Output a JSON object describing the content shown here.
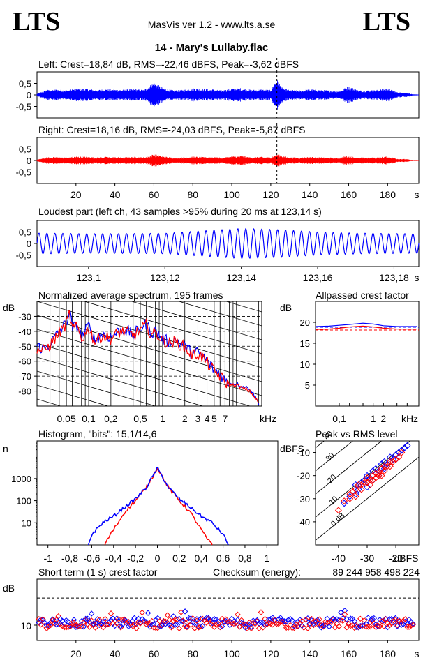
{
  "header": {
    "logo_left": "LTS",
    "logo_right": "LTS",
    "app_title": "MasVis ver 1.2 - www.lts.a.se",
    "track_title": "14 - Mary's Lullaby.flac"
  },
  "colors": {
    "left": "#0000ff",
    "right": "#ff0000",
    "grid": "#000000"
  },
  "chart_data": [
    {
      "id": "left_waveform",
      "type": "line",
      "title": "Left: Crest=18,84 dB, RMS=-22,46 dBFS, Peak=-3,62 dBFS",
      "series": [
        {
          "name": "Left",
          "color": "#0000ff"
        }
      ],
      "crest_db": 18.84,
      "rms_dbfs": -22.46,
      "peak_dbfs": -3.62,
      "ylim": [
        -1,
        1
      ],
      "y_ticks": [
        "0,5",
        "0",
        "-0,5"
      ],
      "marker_x_s": 123.14,
      "envelope_x_s": [
        0,
        5,
        10,
        15,
        20,
        25,
        30,
        35,
        40,
        45,
        50,
        55,
        60,
        65,
        70,
        75,
        80,
        85,
        90,
        95,
        100,
        105,
        110,
        115,
        120,
        123,
        126,
        130,
        135,
        140,
        145,
        150,
        155,
        160,
        165,
        170,
        175,
        180,
        185,
        190,
        193
      ],
      "envelope_amp": [
        0.05,
        0.22,
        0.25,
        0.2,
        0.27,
        0.28,
        0.22,
        0.25,
        0.24,
        0.23,
        0.26,
        0.22,
        0.55,
        0.3,
        0.2,
        0.22,
        0.3,
        0.25,
        0.25,
        0.2,
        0.28,
        0.3,
        0.22,
        0.25,
        0.22,
        0.7,
        0.3,
        0.22,
        0.2,
        0.25,
        0.22,
        0.2,
        0.18,
        0.38,
        0.2,
        0.2,
        0.22,
        0.3,
        0.12,
        0.1,
        0.02
      ]
    },
    {
      "id": "right_waveform",
      "type": "line",
      "title": "Right: Crest=18,16 dB, RMS=-24,03 dBFS, Peak=-5,87 dBFS",
      "series": [
        {
          "name": "Right",
          "color": "#ff0000"
        }
      ],
      "crest_db": 18.16,
      "rms_dbfs": -24.03,
      "peak_dbfs": -5.87,
      "ylim": [
        -1,
        1
      ],
      "y_ticks": [
        "0,5",
        "0",
        "-0,5"
      ],
      "x_ticks": [
        "20",
        "40",
        "60",
        "80",
        "100",
        "120",
        "140",
        "160",
        "180"
      ],
      "x_unit": "s",
      "xlim": [
        0,
        196
      ],
      "marker_x_s": 123.14,
      "envelope_x_s": [
        0,
        5,
        10,
        15,
        20,
        25,
        30,
        35,
        40,
        45,
        50,
        55,
        60,
        65,
        70,
        75,
        80,
        85,
        90,
        95,
        100,
        105,
        110,
        115,
        120,
        123,
        126,
        130,
        135,
        140,
        145,
        150,
        155,
        160,
        165,
        170,
        175,
        180,
        185,
        190,
        193
      ],
      "envelope_amp": [
        0.04,
        0.14,
        0.16,
        0.13,
        0.18,
        0.17,
        0.14,
        0.16,
        0.15,
        0.14,
        0.16,
        0.14,
        0.28,
        0.18,
        0.13,
        0.14,
        0.18,
        0.15,
        0.16,
        0.13,
        0.18,
        0.2,
        0.14,
        0.16,
        0.14,
        0.3,
        0.2,
        0.14,
        0.13,
        0.16,
        0.14,
        0.13,
        0.12,
        0.22,
        0.13,
        0.13,
        0.14,
        0.18,
        0.08,
        0.06,
        0.02
      ]
    },
    {
      "id": "loudest_part",
      "type": "line",
      "title": "Loudest part (left  ch, 43 samples >95% during 20 ms at 123,14 s)",
      "series": [
        {
          "name": "Left",
          "color": "#0000ff"
        }
      ],
      "xlim": [
        123.0865,
        123.1865
      ],
      "ylim": [
        -1,
        1
      ],
      "y_ticks": [
        "0,5",
        "0",
        "-0,5"
      ],
      "x_ticks": [
        "123,1",
        "123,12",
        "123,14",
        "123,16",
        "123,18"
      ],
      "x_unit": "s",
      "cycles": 48,
      "amplitude_x": [
        123.0865,
        123.1,
        123.12,
        123.13,
        123.14,
        123.15,
        123.16,
        123.17,
        123.1865
      ],
      "amplitude_y": [
        0.45,
        0.42,
        0.44,
        0.55,
        0.65,
        0.6,
        0.5,
        0.45,
        0.42
      ]
    },
    {
      "id": "avg_spectrum",
      "type": "line",
      "title": "Normalized average spectrum, 195 frames",
      "ylabel": "dB",
      "xscale": "log",
      "x_unit": "kHz",
      "xlim_khz": [
        0.02,
        22
      ],
      "ylim": [
        -90,
        -20
      ],
      "y_ticks": [
        -30,
        -40,
        -50,
        -60,
        -70,
        -80
      ],
      "x_tick_labels": [
        [
          "0,05",
          0.05
        ],
        [
          "0,1",
          0.1
        ],
        [
          "0,2",
          0.2
        ],
        [
          "0,5",
          0.5
        ],
        [
          "1",
          1
        ],
        [
          "2",
          2
        ],
        [
          "3",
          3
        ],
        [
          "4",
          4
        ],
        [
          "5",
          5
        ],
        [
          "7",
          7
        ]
      ],
      "series": [
        {
          "name": "Left",
          "color": "#0000ff",
          "x_khz": [
            0.02,
            0.025,
            0.03,
            0.04,
            0.05,
            0.055,
            0.06,
            0.07,
            0.08,
            0.09,
            0.1,
            0.12,
            0.15,
            0.2,
            0.25,
            0.3,
            0.4,
            0.5,
            0.6,
            0.7,
            0.8,
            1,
            1.2,
            1.5,
            2,
            2.5,
            3,
            4,
            5,
            6,
            7,
            8,
            10,
            12,
            15,
            20
          ],
          "y": [
            -50,
            -52,
            -48,
            -40,
            -34,
            -26,
            -38,
            -36,
            -44,
            -40,
            -36,
            -46,
            -42,
            -44,
            -40,
            -39,
            -42,
            -38,
            -35,
            -41,
            -40,
            -45,
            -47,
            -46,
            -50,
            -55,
            -54,
            -60,
            -66,
            -68,
            -73,
            -75,
            -75,
            -77,
            -78,
            -88
          ]
        },
        {
          "name": "Right",
          "color": "#ff0000",
          "x_khz": [
            0.02,
            0.025,
            0.03,
            0.04,
            0.05,
            0.055,
            0.06,
            0.07,
            0.08,
            0.09,
            0.1,
            0.12,
            0.15,
            0.2,
            0.25,
            0.3,
            0.4,
            0.5,
            0.6,
            0.7,
            0.8,
            1,
            1.2,
            1.5,
            2,
            2.5,
            3,
            4,
            5,
            6,
            7,
            8,
            10,
            12,
            15,
            20
          ],
          "y": [
            -52,
            -53,
            -49,
            -41,
            -35,
            -28,
            -39,
            -37,
            -45,
            -42,
            -37,
            -47,
            -43,
            -45,
            -41,
            -40,
            -43,
            -39,
            -36,
            -42,
            -41,
            -46,
            -48,
            -47,
            -51,
            -56,
            -55,
            -61,
            -67,
            -70,
            -74,
            -76,
            -76,
            -78,
            -80,
            -88
          ]
        }
      ]
    },
    {
      "id": "allpass_crest",
      "type": "line",
      "title": "Allpassed crest factor",
      "ylabel": "dB",
      "xscale": "log",
      "x_unit": "kHz",
      "ylim": [
        0,
        25
      ],
      "y_ticks": [
        5,
        10,
        15,
        20
      ],
      "x_tick_labels": [
        [
          "0,1",
          0.1
        ],
        [
          "1",
          1
        ],
        [
          "2",
          2
        ]
      ],
      "xlim_khz": [
        0.02,
        22
      ],
      "series": [
        {
          "name": "Left",
          "color": "#0000ff",
          "x_khz": [
            0.02,
            0.05,
            0.1,
            0.2,
            0.5,
            1,
            2,
            5,
            10,
            20
          ],
          "y": [
            19.0,
            19.1,
            19.3,
            19.5,
            19.8,
            19.6,
            19.2,
            19.0,
            19.0,
            19.0
          ]
        },
        {
          "name": "Right",
          "color": "#ff0000",
          "x_khz": [
            0.02,
            0.05,
            0.1,
            0.2,
            0.5,
            1,
            2,
            5,
            10,
            20
          ],
          "y": [
            18.3,
            18.4,
            18.6,
            18.9,
            19.1,
            18.9,
            18.6,
            18.4,
            18.4,
            18.4
          ]
        }
      ],
      "dashed_left": 18.84,
      "dashed_right": 18.16
    },
    {
      "id": "histogram",
      "type": "line",
      "title": "Histogram, \"bits\": 15,1/14,6",
      "ylabel": "n",
      "yscale": "log",
      "ylim": [
        1,
        50000
      ],
      "y_ticks": [
        "1000",
        "100",
        "10"
      ],
      "x_ticks": [
        "-1",
        "-0,8",
        "-0,6",
        "-0,4",
        "-0,2",
        "0",
        "0,2",
        "0,4",
        "0,6",
        "0,8",
        "1"
      ],
      "xlim": [
        -1.1,
        1.1
      ],
      "series": [
        {
          "name": "Left",
          "color": "#0000ff",
          "x": [
            -0.63,
            -0.6,
            -0.5,
            -0.4,
            -0.3,
            -0.2,
            -0.1,
            0,
            0.1,
            0.2,
            0.3,
            0.4,
            0.5,
            0.6,
            0.65
          ],
          "y": [
            1,
            3,
            10,
            20,
            50,
            120,
            400,
            3000,
            400,
            120,
            50,
            20,
            10,
            3,
            1
          ]
        },
        {
          "name": "Right",
          "color": "#ff0000",
          "x": [
            -0.48,
            -0.45,
            -0.4,
            -0.35,
            -0.3,
            -0.2,
            -0.1,
            0,
            0.1,
            0.2,
            0.3,
            0.35,
            0.4,
            0.45,
            0.5
          ],
          "y": [
            1,
            2,
            5,
            12,
            30,
            100,
            400,
            3000,
            400,
            100,
            30,
            12,
            5,
            2,
            1
          ]
        }
      ]
    },
    {
      "id": "peak_vs_rms",
      "type": "scatter",
      "title": "Peak vs RMS level",
      "ylabel": "dBFS",
      "xlabel": "dBFS",
      "xlim": [
        -48,
        -12
      ],
      "ylim": [
        -50,
        -5
      ],
      "y_ticks": [
        -10,
        -20,
        -30,
        -40
      ],
      "x_ticks": [
        -40,
        -30,
        -20
      ],
      "diagonal_labels": [
        "40",
        "30",
        "20",
        "10",
        "0 dB"
      ],
      "series": [
        {
          "name": "Left",
          "color": "#0000ff",
          "x": [
            -38,
            -36,
            -34,
            -33,
            -32,
            -31,
            -30,
            -29,
            -28,
            -27,
            -26,
            -25,
            -24,
            -23,
            -22,
            -21,
            -20,
            -19,
            -18,
            -17,
            -16,
            -30,
            -28,
            -26,
            -24,
            -22,
            -20,
            -34,
            -32
          ],
          "y": [
            -32,
            -29,
            -24,
            -26,
            -23,
            -22,
            -20,
            -21,
            -18,
            -17,
            -18,
            -15,
            -14,
            -15,
            -12,
            -13,
            -11,
            -10,
            -9,
            -8,
            -7,
            -25,
            -22,
            -20,
            -17,
            -14,
            -13,
            -28,
            -24
          ]
        },
        {
          "name": "Right",
          "color": "#ff0000",
          "x": [
            -40,
            -38,
            -36,
            -35,
            -34,
            -33,
            -32,
            -31,
            -30,
            -29,
            -28,
            -27,
            -26,
            -25,
            -24,
            -23,
            -22,
            -21,
            -20,
            -19,
            -18,
            -32,
            -30,
            -28,
            -26,
            -24,
            -22,
            -36,
            -34,
            -29,
            -27,
            -25
          ],
          "y": [
            -35,
            -31,
            -28,
            -27,
            -26,
            -24,
            -24,
            -23,
            -21,
            -22,
            -20,
            -19,
            -19,
            -17,
            -16,
            -16,
            -14,
            -14,
            -13,
            -12,
            -10,
            -26,
            -23,
            -22,
            -20,
            -18,
            -16,
            -30,
            -29,
            -24,
            -21,
            -20
          ]
        }
      ]
    },
    {
      "id": "short_term_crest",
      "type": "scatter",
      "title": "Short term (1 s) crest factor",
      "checksum_label": "Checksum (energy):",
      "checksum_value": "89 244 958 498 224",
      "ylabel": "dB",
      "ylim": [
        5,
        25
      ],
      "y_ticks": [
        "10"
      ],
      "dashed_y": 18.84,
      "x_ticks": [
        "20",
        "40",
        "60",
        "80",
        "100",
        "120",
        "140",
        "160",
        "180"
      ],
      "x_unit": "s",
      "xlim": [
        0,
        196
      ],
      "n_points": 193,
      "mean_left": 10.8,
      "mean_right": 10.5
    }
  ]
}
